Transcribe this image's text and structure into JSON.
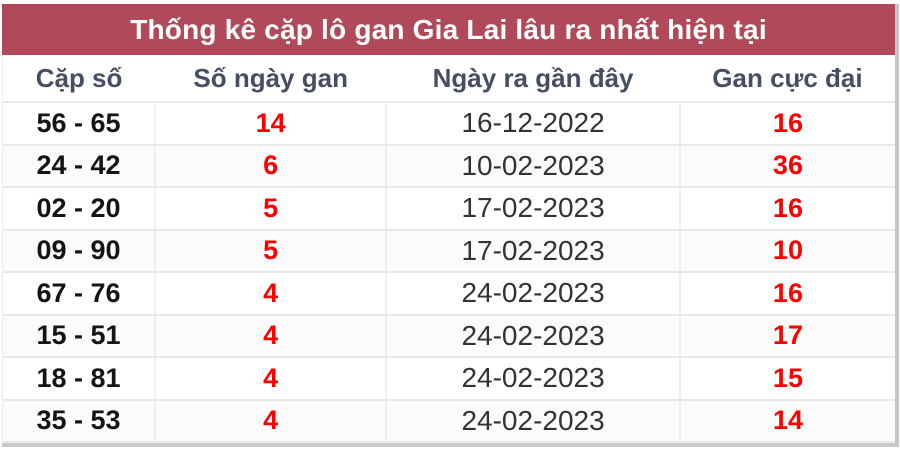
{
  "title": "Thống kê cặp lô gan Gia Lai lâu ra nhất hiện tại",
  "table": {
    "columns": [
      "Cặp số",
      "Số ngày gan",
      "Ngày ra gần đây",
      "Gan cực đại"
    ],
    "rows": [
      {
        "pair": "56 - 65",
        "days": "14",
        "last_date": "16-12-2022",
        "max": "16"
      },
      {
        "pair": "24 - 42",
        "days": "6",
        "last_date": "10-02-2023",
        "max": "36"
      },
      {
        "pair": "02 - 20",
        "days": "5",
        "last_date": "17-02-2023",
        "max": "16"
      },
      {
        "pair": "09 - 90",
        "days": "5",
        "last_date": "17-02-2023",
        "max": "10"
      },
      {
        "pair": "67 - 76",
        "days": "4",
        "last_date": "24-02-2023",
        "max": "16"
      },
      {
        "pair": "15 - 51",
        "days": "4",
        "last_date": "24-02-2023",
        "max": "17"
      },
      {
        "pair": "18 - 81",
        "days": "4",
        "last_date": "24-02-2023",
        "max": "15"
      },
      {
        "pair": "35 - 53",
        "days": "4",
        "last_date": "24-02-2023",
        "max": "14"
      }
    ]
  },
  "colors": {
    "title_bg": "#b04a5a",
    "title_text": "#ffffff",
    "header_text": "#454e63",
    "pair_text": "#141414",
    "gan_number_text": "#ff0000",
    "date_text": "#333333",
    "row_divider": "#e9e9e9",
    "outer_border": "#c7c7c7"
  }
}
